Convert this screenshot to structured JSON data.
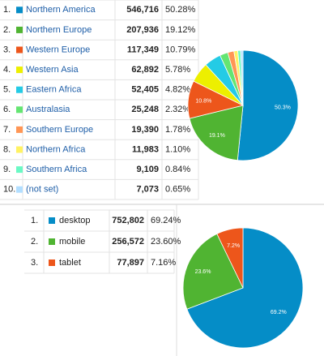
{
  "tables": [
    {
      "rows": [
        {
          "rank": "1.",
          "count": "546,716",
          "percent": "50.28%"
        },
        {
          "rank": "2.",
          "count": "207,936",
          "percent": "19.12%"
        },
        {
          "rank": "3.",
          "count": "117,349",
          "percent": "10.79%"
        },
        {
          "rank": "4.",
          "count": "62,892",
          "percent": "5.78%"
        },
        {
          "rank": "5.",
          "count": "52,405",
          "percent": "4.82%"
        },
        {
          "rank": "6.",
          "count": "25,248",
          "percent": "2.32%"
        },
        {
          "rank": "7.",
          "count": "19,390",
          "percent": "1.78%"
        },
        {
          "rank": "8.",
          "count": "11,983",
          "percent": "1.10%"
        },
        {
          "rank": "9.",
          "count": "9,109",
          "percent": "0.84%"
        },
        {
          "rank": "10.",
          "count": "7,073",
          "percent": "0.65%"
        }
      ]
    },
    {
      "rows": [
        {
          "rank": "1.",
          "count": "752,802",
          "percent": "69.24%"
        },
        {
          "rank": "2.",
          "count": "256,572",
          "percent": "23.60%"
        },
        {
          "rank": "3.",
          "count": "77,897",
          "percent": "7.16%"
        }
      ]
    }
  ],
  "chart_data": [
    {
      "type": "pie",
      "categories": [
        "Northern America",
        "Northern Europe",
        "Western Europe",
        "Western Asia",
        "Eastern Africa",
        "Australasia",
        "Southern Europe",
        "Northern Africa",
        "Southern Africa",
        "(not set)"
      ],
      "values": [
        50.28,
        19.12,
        10.79,
        5.78,
        4.82,
        2.32,
        1.78,
        1.1,
        0.84,
        0.65
      ],
      "value_labels": [
        "50.3%",
        "19.1%",
        "10.8%",
        null,
        null,
        null,
        null,
        null,
        null,
        null
      ],
      "colors": [
        "#058dc7",
        "#50b432",
        "#ed561b",
        "#edef00",
        "#24cbe5",
        "#64e572",
        "#ff9655",
        "#fff263",
        "#6af9c4",
        "#b2deff"
      ]
    },
    {
      "type": "pie",
      "categories": [
        "desktop",
        "mobile",
        "tablet"
      ],
      "values": [
        69.24,
        23.6,
        7.16
      ],
      "value_labels": [
        "69.2%",
        "23.6%",
        "7.2%"
      ],
      "colors": [
        "#058dc7",
        "#50b432",
        "#ed561b"
      ]
    }
  ]
}
